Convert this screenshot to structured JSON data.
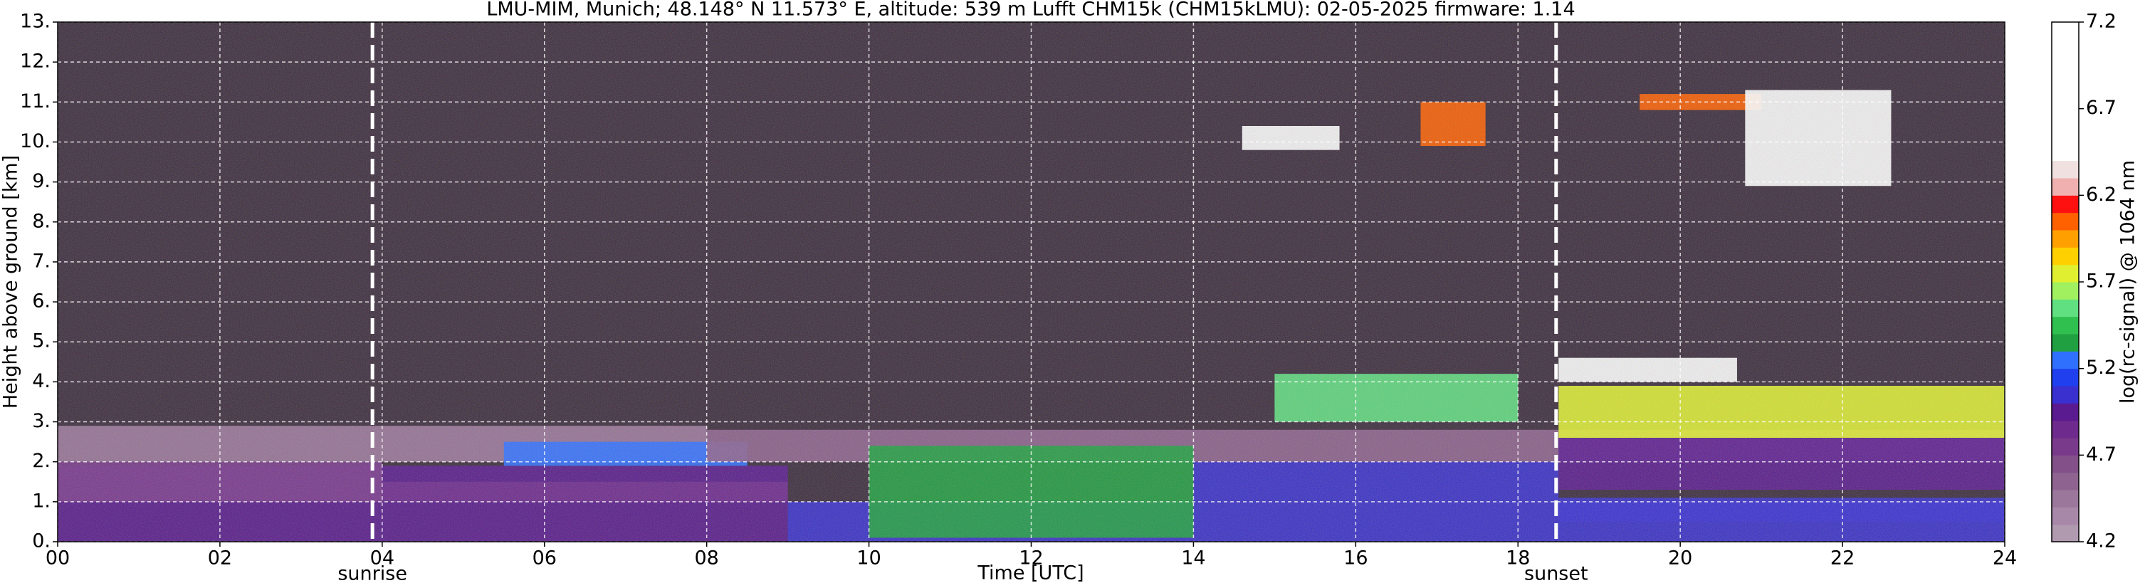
{
  "chart_data": {
    "type": "heatmap",
    "title": "LMU-MIM, Munich; 48.148° N 11.573° E, altitude: 539 m    Lufft CHM15k (CHM15kLMU): 02-05-2025    firmware: 1.14",
    "x_label": "Time [UTC]",
    "y_label": "Height above ground [km]",
    "colorbar_label": "log(rc-signal) @ 1064 nm",
    "xlim": [
      0,
      24
    ],
    "xticks": [
      {
        "value": 0,
        "label": "00"
      },
      {
        "value": 2,
        "label": "02"
      },
      {
        "value": 4,
        "label": "04"
      },
      {
        "value": 6,
        "label": "06"
      },
      {
        "value": 8,
        "label": "08"
      },
      10,
      12,
      14,
      16,
      18,
      20,
      22,
      24
    ],
    "ylim": [
      0,
      13
    ],
    "yticks": [
      {
        "value": 0,
        "label": "0."
      },
      {
        "value": 1,
        "label": "1."
      },
      {
        "value": 2,
        "label": "2."
      },
      {
        "value": 3,
        "label": "3."
      },
      {
        "value": 4,
        "label": "4."
      },
      {
        "value": 5,
        "label": "5."
      },
      {
        "value": 6,
        "label": "6."
      },
      {
        "value": 7,
        "label": "7."
      },
      {
        "value": 8,
        "label": "8."
      },
      {
        "value": 9,
        "label": "9."
      },
      {
        "value": 10,
        "label": "10."
      },
      {
        "value": 11,
        "label": "11."
      },
      {
        "value": 12,
        "label": "12."
      },
      {
        "value": 13,
        "label": "13."
      }
    ],
    "clim": [
      4.2,
      7.2
    ],
    "cticks": [
      4.2,
      4.7,
      5.2,
      5.7,
      6.2,
      6.7,
      7.2
    ],
    "grid": true,
    "background_color": "#3b2b3c",
    "colormap": [
      "#b09ab0",
      "#a888a8",
      "#9c779c",
      "#8f638f",
      "#83508a",
      "#7a3a8c",
      "#6e2a8c",
      "#5a1a90",
      "#3a30d0",
      "#2040f0",
      "#3070ff",
      "#20a040",
      "#30c050",
      "#60e080",
      "#a0f060",
      "#e0f030",
      "#ffd000",
      "#ffa000",
      "#ff6000",
      "#ff1010",
      "#f0b0b0",
      "#f0e0e0",
      "#ffffff",
      "#ffffff",
      "#ffffff",
      "#ffffff",
      "#ffffff",
      "#ffffff",
      "#ffffff",
      "#ffffff"
    ],
    "annotations": [
      {
        "text": "sunrise",
        "x": 3.88
      },
      {
        "text": "sunset",
        "x": 18.47
      }
    ],
    "regions": [
      {
        "x": [
          0,
          9
        ],
        "y": [
          0,
          1.9
        ],
        "value": 5.0
      },
      {
        "x": [
          0,
          4
        ],
        "y": [
          1.0,
          2.0
        ],
        "value": 4.8
      },
      {
        "x": [
          0,
          8
        ],
        "y": [
          2.0,
          2.9
        ],
        "value": 4.5
      },
      {
        "x": [
          4,
          9
        ],
        "y": [
          1.0,
          1.5
        ],
        "value": 4.85
      },
      {
        "x": [
          5.5,
          8.5
        ],
        "y": [
          1.9,
          2.5
        ],
        "value": 5.3
      },
      {
        "x": [
          9,
          24
        ],
        "y": [
          0,
          1.0
        ],
        "value": 5.1
      },
      {
        "x": [
          8,
          24
        ],
        "y": [
          2.0,
          2.8
        ],
        "value": 4.55
      },
      {
        "x": [
          10,
          14
        ],
        "y": [
          0.1,
          2.4
        ],
        "value": 5.35
      },
      {
        "x": [
          14,
          18.5
        ],
        "y": [
          1.0,
          2.0
        ],
        "value": 5.05
      },
      {
        "x": [
          15,
          18
        ],
        "y": [
          3.0,
          4.2
        ],
        "value": 5.6
      },
      {
        "x": [
          18.5,
          24
        ],
        "y": [
          1.3,
          2.6
        ],
        "value": 4.9
      },
      {
        "x": [
          18.5,
          24
        ],
        "y": [
          0.5,
          1.1
        ],
        "value": 5.05
      },
      {
        "x": [
          18.5,
          24
        ],
        "y": [
          2.6,
          3.9
        ],
        "value": 5.75
      },
      {
        "x": [
          18.5,
          20.7
        ],
        "y": [
          4.0,
          4.6
        ],
        "value": 7.0
      },
      {
        "x": [
          14.6,
          15.8
        ],
        "y": [
          9.8,
          10.4
        ],
        "value": 6.8
      },
      {
        "x": [
          16.8,
          17.6
        ],
        "y": [
          9.9,
          11.0
        ],
        "value": 6.0
      },
      {
        "x": [
          19.5,
          21
        ],
        "y": [
          10.8,
          11.2
        ],
        "value": 6.0
      },
      {
        "x": [
          20.8,
          22.6
        ],
        "y": [
          8.9,
          11.3
        ],
        "value": 6.9
      }
    ]
  }
}
